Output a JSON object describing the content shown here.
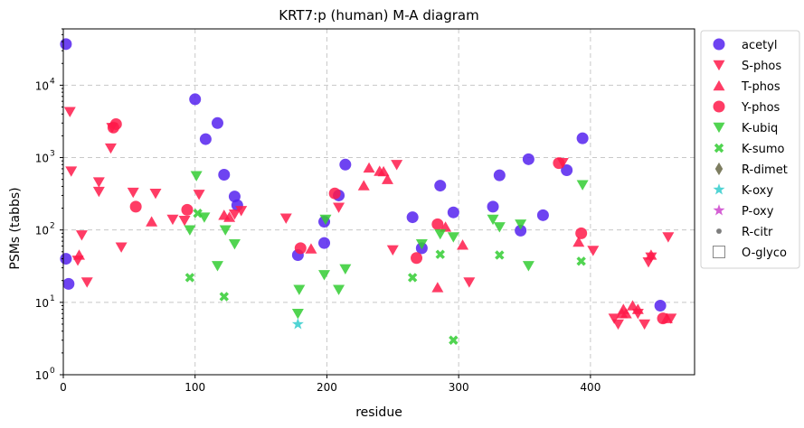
{
  "chart_data": {
    "type": "scatter",
    "title": "KRT7:p (human) M-A diagram",
    "xlabel": "residue",
    "ylabel": "PSMs (tabbs)",
    "xlim": [
      0,
      479
    ],
    "ylim": [
      1,
      60000
    ],
    "yscale": "log",
    "grid": true,
    "legend_position": "right, outside plot",
    "xticks": [
      0,
      100,
      200,
      300,
      400
    ],
    "yticks": [
      {
        "v": 1,
        "label": "10",
        "exp": "0"
      },
      {
        "v": 10,
        "label": "10",
        "exp": "1"
      },
      {
        "v": 100,
        "label": "10",
        "exp": "2"
      },
      {
        "v": 1000,
        "label": "10",
        "exp": "3"
      },
      {
        "v": 10000,
        "label": "10",
        "exp": "4"
      }
    ],
    "series": [
      {
        "name": "acetyl",
        "marker": "circle",
        "color": "#5522ee",
        "x": [
          2,
          2,
          4,
          100,
          108,
          117,
          122,
          130,
          132,
          178,
          198,
          198,
          209,
          214,
          265,
          272,
          286,
          296,
          326,
          331,
          347,
          353,
          364,
          382,
          394,
          453
        ],
        "y": [
          37000,
          40,
          18,
          6400,
          1800,
          3000,
          580,
          290,
          220,
          45,
          130,
          66,
          300,
          800,
          150,
          56,
          410,
          175,
          210,
          570,
          98,
          950,
          160,
          670,
          1850,
          9
        ]
      },
      {
        "name": "S-phos",
        "marker": "triangle-down",
        "color": "#ff1a4a",
        "x": [
          5,
          6,
          11,
          14,
          18,
          27,
          27,
          36,
          37,
          44,
          53,
          70,
          83,
          92,
          103,
          130,
          135,
          169,
          209,
          250,
          253,
          308,
          379,
          402,
          418,
          421,
          436,
          441,
          444,
          446,
          459,
          461
        ],
        "y": [
          4300,
          650,
          38,
          85,
          19,
          460,
          340,
          1350,
          2600,
          58,
          330,
          320,
          140,
          135,
          310,
          165,
          185,
          145,
          205,
          53,
          800,
          19,
          850,
          52,
          6,
          5,
          7,
          5,
          36,
          42,
          80,
          6
        ]
      },
      {
        "name": "T-phos",
        "marker": "triangle-up",
        "color": "#ff1a4a",
        "x": [
          12,
          67,
          122,
          126,
          188,
          228,
          232,
          240,
          243,
          246,
          284,
          290,
          303,
          391,
          424,
          425,
          427,
          432,
          436,
          446,
          458
        ],
        "y": [
          45,
          130,
          160,
          150,
          55,
          410,
          720,
          650,
          640,
          500,
          16,
          110,
          62,
          68,
          7,
          8,
          7,
          9,
          8,
          45,
          6
        ]
      },
      {
        "name": "Y-phos",
        "marker": "circle",
        "color": "#ff1a4a",
        "x": [
          38,
          40,
          55,
          94,
          180,
          206,
          268,
          284,
          376,
          393,
          455
        ],
        "y": [
          2600,
          2900,
          210,
          190,
          56,
          320,
          41,
          120,
          840,
          90,
          6
        ]
      },
      {
        "name": "K-ubiq",
        "marker": "triangle-down",
        "color": "#33cc33",
        "x": [
          96,
          101,
          107,
          117,
          123,
          130,
          178,
          179,
          198,
          199,
          209,
          214,
          272,
          286,
          296,
          326,
          331,
          347,
          353,
          394
        ],
        "y": [
          100,
          560,
          150,
          32,
          100,
          64,
          7,
          15,
          24,
          140,
          15,
          29,
          64,
          88,
          80,
          140,
          110,
          120,
          32,
          420
        ]
      },
      {
        "name": "K-sumo",
        "marker": "x",
        "color": "#33cc33",
        "x": [
          96,
          102,
          122,
          265,
          286,
          296,
          331,
          393
        ],
        "y": [
          22,
          170,
          12,
          22,
          46,
          3,
          45,
          37
        ]
      },
      {
        "name": "R-dimet",
        "marker": "diamond",
        "color": "#666644",
        "x": [],
        "y": []
      },
      {
        "name": "K-oxy",
        "marker": "star",
        "color": "#33cccc",
        "x": [
          178
        ],
        "y": [
          5
        ]
      },
      {
        "name": "P-oxy",
        "marker": "star",
        "color": "#cc44cc",
        "x": [],
        "y": []
      },
      {
        "name": "R-citr",
        "marker": "dot",
        "color": "#666666",
        "x": [],
        "y": []
      },
      {
        "name": "O-glyco",
        "marker": "square-open",
        "color": "#888888",
        "x": [],
        "y": []
      }
    ]
  }
}
